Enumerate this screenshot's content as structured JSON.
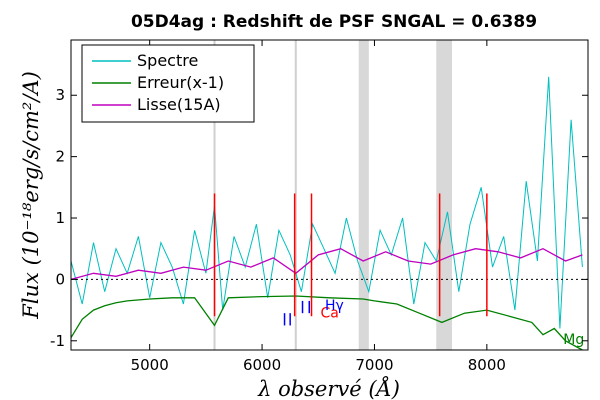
{
  "chart_data": {
    "type": "line",
    "title": "05D4ag : Redshift de PSF SNGAL = 0.6389",
    "xlabel": "λ observé (Å)",
    "ylabel": "Flux (10⁻¹⁸erg/s/cm²/A)",
    "xlim": [
      4300,
      8900
    ],
    "ylim": [
      -1.15,
      3.9
    ],
    "x_ticks": [
      5000,
      6000,
      7000,
      8000
    ],
    "y_ticks": [
      -1,
      0,
      1,
      2,
      3
    ],
    "x_tick_labels": [
      "5000",
      "6000",
      "7000",
      "8000"
    ],
    "y_tick_labels": [
      "-1",
      "0",
      "1",
      "2",
      "3"
    ],
    "zero_line": 0,
    "legend": {
      "position": "top-left",
      "entries": [
        {
          "label": "Spectre",
          "color": "#00bfbf"
        },
        {
          "label": "Erreur(x-1)",
          "color": "#008000"
        },
        {
          "label": "Lisse(15A)",
          "color": "#bf00bf"
        }
      ]
    },
    "shaded_bands": [
      {
        "x0": 6860,
        "x1": 6950,
        "color": "#d8d8d8"
      },
      {
        "x0": 7550,
        "x1": 7690,
        "color": "#d8d8d8"
      }
    ],
    "sky_lines": [
      5577,
      6300
    ],
    "series": [
      {
        "name": "Spectre",
        "color": "#00bfbf",
        "x": [
          4300,
          4400,
          4500,
          4600,
          4700,
          4800,
          4900,
          5000,
          5100,
          5200,
          5300,
          5400,
          5500,
          5577,
          5650,
          5750,
          5850,
          5950,
          6050,
          6150,
          6250,
          6350,
          6450,
          6550,
          6650,
          6750,
          6850,
          6950,
          7050,
          7150,
          7250,
          7350,
          7450,
          7550,
          7650,
          7750,
          7850,
          7950,
          8050,
          8150,
          8250,
          8350,
          8450,
          8550,
          8650,
          8750,
          8850
        ],
        "y": [
          0.3,
          -0.4,
          0.6,
          -0.2,
          0.5,
          0.1,
          0.7,
          -0.3,
          0.6,
          0.2,
          -0.4,
          0.8,
          0.1,
          1.2,
          -0.5,
          0.7,
          0.2,
          0.9,
          -0.3,
          0.8,
          0.4,
          -0.2,
          0.9,
          0.5,
          0.1,
          1.0,
          0.3,
          -0.2,
          0.8,
          0.4,
          1.0,
          -0.4,
          0.6,
          0.3,
          1.1,
          -0.2,
          0.9,
          1.5,
          0.2,
          0.7,
          -0.5,
          1.6,
          0.3,
          3.3,
          -0.8,
          2.6,
          0.2
        ]
      },
      {
        "name": "Lisse(15A)",
        "color": "#bf00bf",
        "x": [
          4300,
          4500,
          4700,
          4900,
          5100,
          5300,
          5500,
          5700,
          5900,
          6100,
          6300,
          6500,
          6700,
          6900,
          7100,
          7300,
          7500,
          7700,
          7900,
          8100,
          8300,
          8500,
          8700,
          8850
        ],
        "y": [
          0.0,
          0.1,
          0.05,
          0.15,
          0.1,
          0.2,
          0.15,
          0.3,
          0.2,
          0.35,
          0.1,
          0.4,
          0.5,
          0.3,
          0.45,
          0.3,
          0.25,
          0.4,
          0.5,
          0.45,
          0.35,
          0.5,
          0.3,
          0.4
        ]
      },
      {
        "name": "Erreur(x-1)",
        "color": "#008000",
        "x": [
          4300,
          4400,
          4500,
          4600,
          4700,
          4800,
          5000,
          5200,
          5400,
          5577,
          5700,
          6000,
          6300,
          6600,
          6900,
          7000,
          7200,
          7400,
          7600,
          7800,
          8000,
          8200,
          8400,
          8500,
          8600,
          8700,
          8850
        ],
        "y": [
          -0.95,
          -0.65,
          -0.5,
          -0.43,
          -0.38,
          -0.35,
          -0.32,
          -0.3,
          -0.3,
          -0.75,
          -0.3,
          -0.28,
          -0.27,
          -0.3,
          -0.32,
          -0.35,
          -0.4,
          -0.55,
          -0.7,
          -0.55,
          -0.5,
          -0.6,
          -0.7,
          -0.9,
          -0.8,
          -1.0,
          -1.15
        ]
      }
    ],
    "red_spikes": [
      5577,
      6290,
      6440,
      7580,
      8000
    ],
    "line_labels": [
      {
        "text": "Ca",
        "x": 6520,
        "y": -0.62,
        "color": "#ff0000"
      },
      {
        "text": "Hγ",
        "x": 6560,
        "y": -0.5,
        "color": "#0000ff"
      },
      {
        "text": "Mg",
        "x": 8680,
        "y": -1.05,
        "color": "#008000"
      }
    ],
    "line_markers": [
      {
        "x": 6200,
        "y0": -0.75,
        "y1": -0.55,
        "color": "#0000ff"
      },
      {
        "x": 6250,
        "y0": -0.75,
        "y1": -0.55,
        "color": "#0000ff"
      },
      {
        "x": 6360,
        "y0": -0.55,
        "y1": -0.35,
        "color": "#0000ff"
      },
      {
        "x": 6420,
        "y0": -0.55,
        "y1": -0.35,
        "color": "#0000ff"
      }
    ]
  }
}
